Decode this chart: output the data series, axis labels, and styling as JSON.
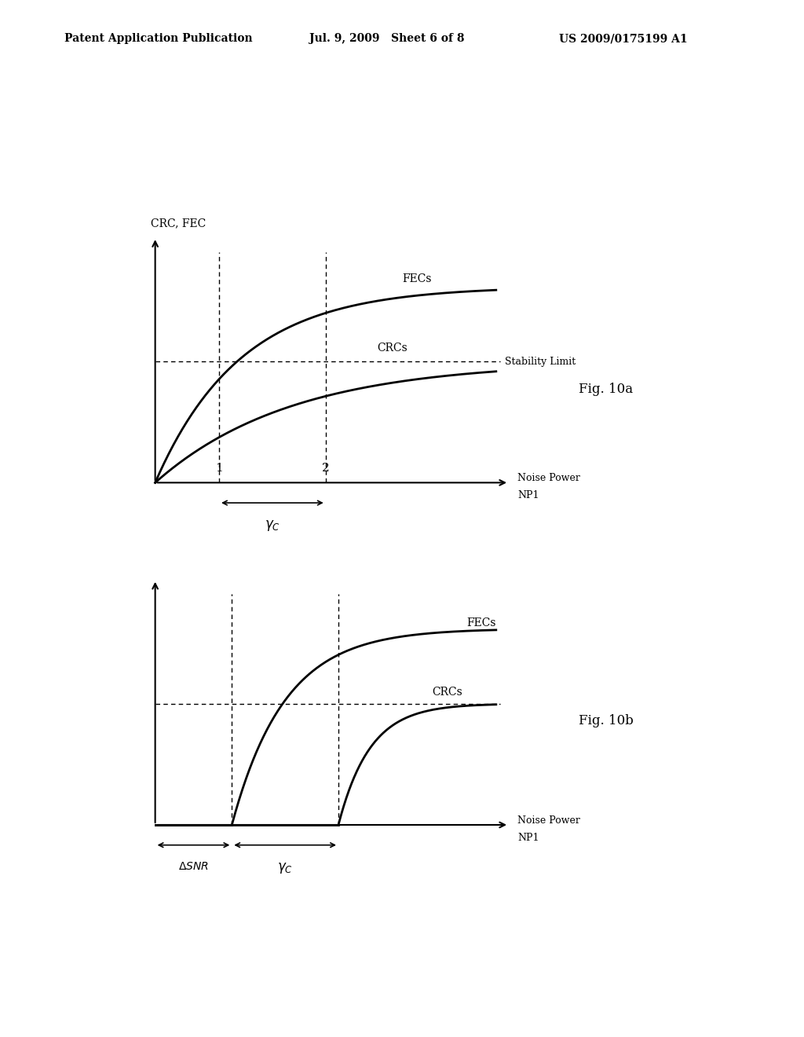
{
  "bg_color": "#ffffff",
  "header_left": "Patent Application Publication",
  "header_mid": "Jul. 9, 2009   Sheet 6 of 8",
  "header_right": "US 2009/0175199 A1",
  "fig_label_a": "Fig. 10a",
  "fig_label_b": "Fig. 10b",
  "ylabel": "CRC, FEC",
  "fec_label": "FECs",
  "crc_label": "CRCs",
  "stability_label": "Stability Limit",
  "noise_power_label": "Noise Power",
  "np1_label": "NP1"
}
